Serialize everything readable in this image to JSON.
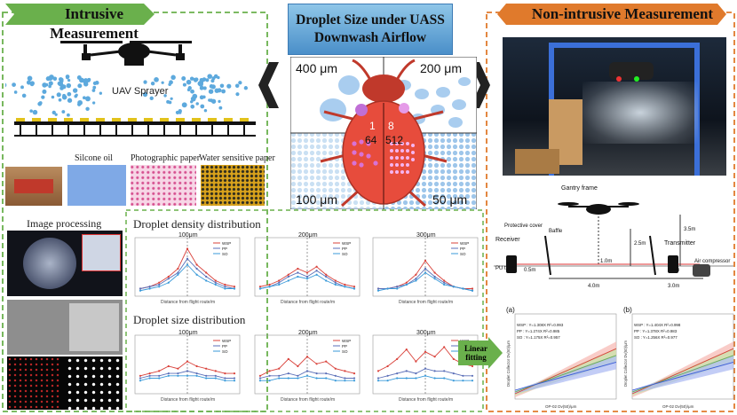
{
  "left_header": "Intrusive Measurement",
  "right_header": "Non-intrusive Measurement",
  "center_title_line1": "Droplet Size under UASS",
  "center_title_line2": "Downwash Airflow",
  "bug": {
    "q_tl": "400 μm",
    "q_tr": "200 μm",
    "q_bl": "100 μm",
    "q_br": "50 μm",
    "c1": "1",
    "c8": "8",
    "c64": "64",
    "c512": "512"
  },
  "left": {
    "uav_label": "UAV Sprayer",
    "card1": "Silcone oil",
    "card2": "Photographic paper",
    "card3": "Water sensitive paper",
    "image_processing": "Image processing",
    "density_title": "Droplet density distribution",
    "size_title": "Droplet size distribution",
    "panel_labels": [
      "100μm",
      "200μm",
      "300μm"
    ],
    "x_axis_label": "Distance from flight route/m",
    "density_ylabel": "Droplet density/(deposits·cm⁻²)",
    "size_ylabel": "DV50/μm",
    "legend": [
      "WSP",
      "PP",
      "SO"
    ],
    "colors": {
      "WSP": "#d9413a",
      "PP": "#5b6fb8",
      "SO": "#3a9ad9"
    }
  },
  "right": {
    "gantry_label": "Gantry frame",
    "protective_cover": "Protective cover",
    "receiver": "Receiver",
    "baffle": "Baffle",
    "transmitter": "Transmitter",
    "air_compressor": "Air compressor",
    "pu_tube": "PU tube",
    "dims": [
      "3.5m",
      "2.5m",
      "1.0m",
      "0.5m",
      "4.0m",
      "3.0m",
      "0.5m"
    ],
    "linear_fitting": "Linear fitting",
    "panel_a": "(a)",
    "panel_b": "(b)",
    "fit_a": [
      "WSP : Y=1.308X  R²=0.993",
      "PP : Y=1.274X  R²=0.985",
      "SO : Y=1.175X  R²=0.957"
    ],
    "fit_b": [
      "WSP : Y=1.404X  R²=0.998",
      "PP : Y=1.378X  R²=0.983",
      "SO : Y=1.256X  R²=0.977"
    ],
    "ylabel": "Droplet Collector Dv(50)/μm",
    "xlabel": "OP-02 Dv(50)/μm"
  }
}
